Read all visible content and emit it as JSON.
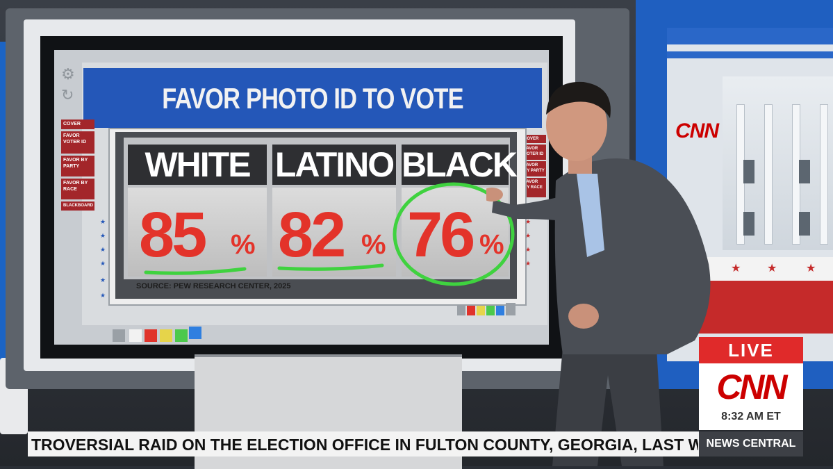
{
  "graphic": {
    "title": "FAVOR PHOTO ID TO VOTE",
    "columns": [
      {
        "label": "WHITE",
        "value": "85",
        "unit": "%"
      },
      {
        "label": "LATINO",
        "value": "82",
        "unit": "%"
      },
      {
        "label": "BLACK",
        "value": "76",
        "unit": "%"
      }
    ],
    "source": "SOURCE: PEW RESEARCH CENTER, 2025",
    "menu_left": [
      "COVER",
      "FAVOR VOTER ID",
      "FAVOR BY PARTY",
      "FAVOR BY RACE",
      "BLACKBOARD"
    ],
    "menu_right": [
      "COVER",
      "FAVOR VOTER ID",
      "FAVOR BY PARTY",
      "FAVOR BY RACE"
    ]
  },
  "wall": {
    "logo": "CNN"
  },
  "lower_third": {
    "live": "LIVE",
    "network": "CNN",
    "time": "8:32 AM ET",
    "show": "NEWS CENTRAL",
    "ticker": "TROVERSIAL RAID ON THE ELECTION OFFICE IN FULTON COUNTY, GEORGIA, LAST WEEK"
  },
  "colors": {
    "accent_red": "#e3332a",
    "title_blue": "#2457b8",
    "cnn_red": "#cc0000",
    "highlight_green": "#3fd23f"
  }
}
